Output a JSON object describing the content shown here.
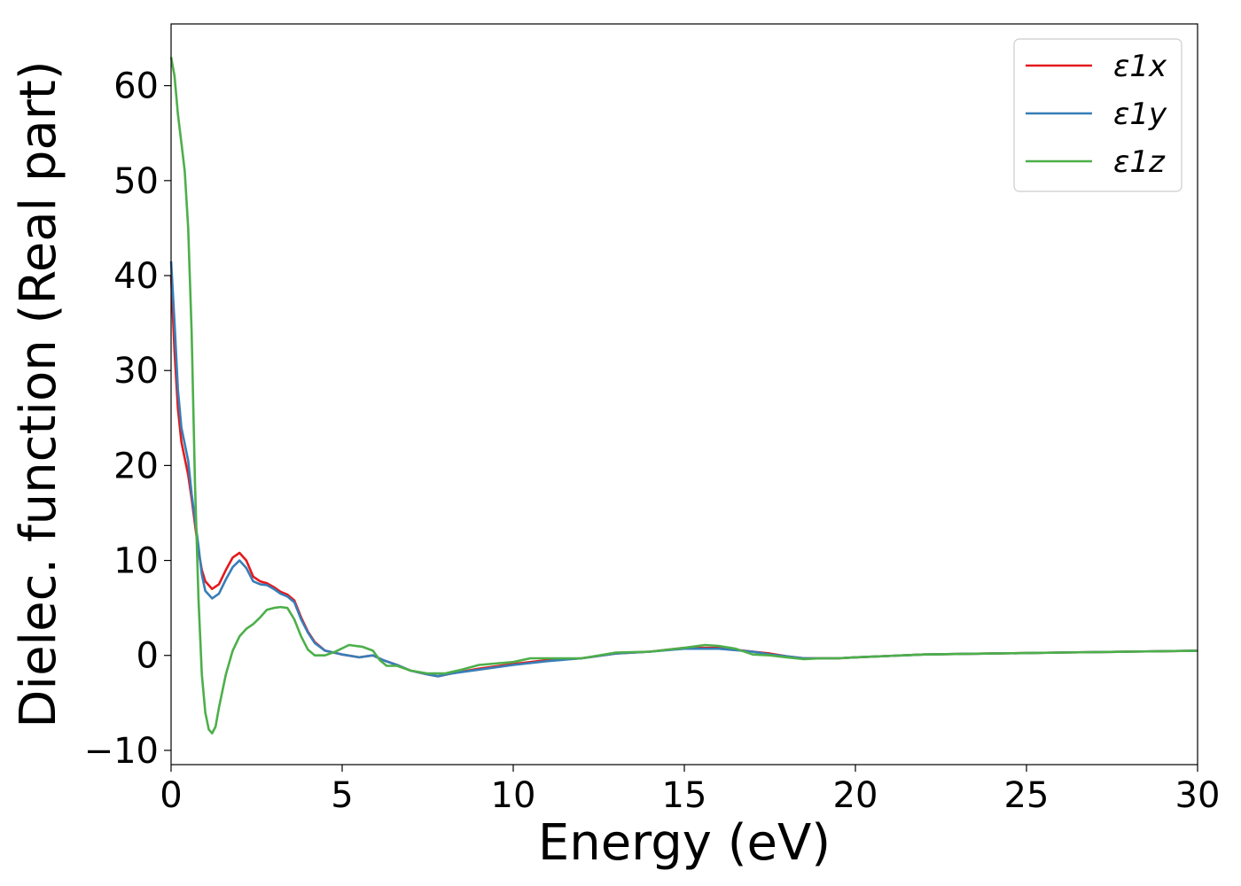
{
  "chart_data": {
    "type": "line",
    "xlabel": "Energy (eV)",
    "ylabel": "Dielec. function (Real part)",
    "xlim": [
      0,
      30
    ],
    "ylim": [
      -11.5,
      66.5
    ],
    "xticks": [
      0,
      5,
      10,
      15,
      20,
      25,
      30
    ],
    "xtick_labels": [
      "0",
      "5",
      "10",
      "15",
      "20",
      "25",
      "30"
    ],
    "yticks": [
      -10,
      0,
      10,
      20,
      30,
      40,
      50,
      60
    ],
    "ytick_labels": [
      "−10",
      "0",
      "10",
      "20",
      "30",
      "40",
      "50",
      "60"
    ],
    "grid": false,
    "legend_position": "top-right",
    "series": [
      {
        "name": "ε1x",
        "color": "#e41a1c",
        "points": [
          [
            0,
            40
          ],
          [
            0.1,
            32
          ],
          [
            0.2,
            26
          ],
          [
            0.3,
            22.5
          ],
          [
            0.5,
            19
          ],
          [
            0.6,
            16.5
          ],
          [
            0.8,
            11
          ],
          [
            0.9,
            9
          ],
          [
            1.0,
            7.8
          ],
          [
            1.2,
            7
          ],
          [
            1.4,
            7.5
          ],
          [
            1.6,
            9
          ],
          [
            1.8,
            10.3
          ],
          [
            2.0,
            10.8
          ],
          [
            2.2,
            10
          ],
          [
            2.4,
            8.3
          ],
          [
            2.6,
            7.8
          ],
          [
            2.8,
            7.6
          ],
          [
            3.0,
            7.2
          ],
          [
            3.2,
            6.7
          ],
          [
            3.4,
            6.4
          ],
          [
            3.6,
            5.8
          ],
          [
            3.8,
            4
          ],
          [
            4.0,
            2.5
          ],
          [
            4.2,
            1.4
          ],
          [
            4.5,
            0.5
          ],
          [
            5.0,
            0.1
          ],
          [
            5.5,
            -0.2
          ],
          [
            5.9,
            0
          ],
          [
            6.2,
            -0.5
          ],
          [
            6.6,
            -1
          ],
          [
            7.0,
            -1.6
          ],
          [
            7.5,
            -2
          ],
          [
            7.8,
            -2.2
          ],
          [
            8.2,
            -1.9
          ],
          [
            9.0,
            -1.4
          ],
          [
            10.0,
            -0.9
          ],
          [
            11.0,
            -0.5
          ],
          [
            12.0,
            -0.3
          ],
          [
            13.0,
            0.2
          ],
          [
            14.0,
            0.4
          ],
          [
            15.0,
            0.8
          ],
          [
            16.0,
            0.8
          ],
          [
            17.0,
            0.4
          ],
          [
            17.5,
            0.2
          ],
          [
            18.0,
            -0.1
          ],
          [
            18.5,
            -0.3
          ],
          [
            19.5,
            -0.3
          ],
          [
            20.0,
            -0.2
          ],
          [
            22.0,
            0.1
          ],
          [
            24.0,
            0.2
          ],
          [
            26.0,
            0.3
          ],
          [
            28.0,
            0.4
          ],
          [
            30.0,
            0.5
          ]
        ]
      },
      {
        "name": "ε1y",
        "color": "#377eb8",
        "points": [
          [
            0,
            41.5
          ],
          [
            0.1,
            35
          ],
          [
            0.2,
            28
          ],
          [
            0.3,
            24
          ],
          [
            0.5,
            20.5
          ],
          [
            0.6,
            17
          ],
          [
            0.8,
            11.5
          ],
          [
            0.9,
            8.5
          ],
          [
            1.0,
            6.8
          ],
          [
            1.2,
            6
          ],
          [
            1.4,
            6.5
          ],
          [
            1.6,
            8
          ],
          [
            1.8,
            9.3
          ],
          [
            2.0,
            10
          ],
          [
            2.2,
            9.2
          ],
          [
            2.4,
            7.8
          ],
          [
            2.6,
            7.5
          ],
          [
            2.8,
            7.4
          ],
          [
            3.0,
            7
          ],
          [
            3.2,
            6.5
          ],
          [
            3.4,
            6.2
          ],
          [
            3.6,
            5.6
          ],
          [
            3.8,
            3.8
          ],
          [
            4.0,
            2.4
          ],
          [
            4.2,
            1.3
          ],
          [
            4.5,
            0.5
          ],
          [
            5.0,
            0.1
          ],
          [
            5.5,
            -0.2
          ],
          [
            5.9,
            0
          ],
          [
            6.2,
            -0.5
          ],
          [
            6.6,
            -1
          ],
          [
            7.0,
            -1.6
          ],
          [
            7.5,
            -2
          ],
          [
            7.8,
            -2.2
          ],
          [
            8.2,
            -1.9
          ],
          [
            9.0,
            -1.5
          ],
          [
            10.0,
            -1
          ],
          [
            11.0,
            -0.6
          ],
          [
            12.0,
            -0.3
          ],
          [
            13.0,
            0.2
          ],
          [
            14.0,
            0.4
          ],
          [
            15.0,
            0.7
          ],
          [
            16.0,
            0.7
          ],
          [
            17.0,
            0.4
          ],
          [
            17.5,
            0.1
          ],
          [
            18.0,
            -0.1
          ],
          [
            18.5,
            -0.3
          ],
          [
            19.5,
            -0.3
          ],
          [
            20.0,
            -0.2
          ],
          [
            22.0,
            0.1
          ],
          [
            24.0,
            0.2
          ],
          [
            26.0,
            0.3
          ],
          [
            28.0,
            0.4
          ],
          [
            30.0,
            0.5
          ]
        ]
      },
      {
        "name": "ε1z",
        "color": "#4daf4a",
        "points": [
          [
            0,
            63
          ],
          [
            0.1,
            61
          ],
          [
            0.2,
            57
          ],
          [
            0.3,
            54
          ],
          [
            0.4,
            51
          ],
          [
            0.5,
            45
          ],
          [
            0.6,
            34
          ],
          [
            0.7,
            18
          ],
          [
            0.8,
            6
          ],
          [
            0.9,
            -2
          ],
          [
            1.0,
            -6
          ],
          [
            1.1,
            -7.8
          ],
          [
            1.2,
            -8.2
          ],
          [
            1.3,
            -7.5
          ],
          [
            1.4,
            -5.5
          ],
          [
            1.6,
            -2
          ],
          [
            1.8,
            0.5
          ],
          [
            2.0,
            2
          ],
          [
            2.2,
            2.8
          ],
          [
            2.4,
            3.3
          ],
          [
            2.6,
            4
          ],
          [
            2.8,
            4.8
          ],
          [
            3.0,
            5
          ],
          [
            3.2,
            5.1
          ],
          [
            3.4,
            5
          ],
          [
            3.6,
            3.8
          ],
          [
            3.8,
            2
          ],
          [
            4.0,
            0.6
          ],
          [
            4.2,
            0
          ],
          [
            4.5,
            0
          ],
          [
            4.8,
            0.4
          ],
          [
            5.2,
            1.1
          ],
          [
            5.6,
            0.9
          ],
          [
            5.9,
            0.5
          ],
          [
            6.1,
            -0.5
          ],
          [
            6.3,
            -1.1
          ],
          [
            6.6,
            -1.1
          ],
          [
            7.0,
            -1.6
          ],
          [
            7.5,
            -1.9
          ],
          [
            8.0,
            -1.9
          ],
          [
            8.5,
            -1.5
          ],
          [
            9.0,
            -1
          ],
          [
            10.0,
            -0.7
          ],
          [
            10.5,
            -0.3
          ],
          [
            11.0,
            -0.3
          ],
          [
            12.0,
            -0.3
          ],
          [
            13.0,
            0.3
          ],
          [
            14.0,
            0.4
          ],
          [
            15.0,
            0.8
          ],
          [
            15.6,
            1.1
          ],
          [
            16.0,
            1
          ],
          [
            16.5,
            0.7
          ],
          [
            17.0,
            0.1
          ],
          [
            17.5,
            0
          ],
          [
            18.0,
            -0.2
          ],
          [
            18.5,
            -0.4
          ],
          [
            19.0,
            -0.3
          ],
          [
            19.5,
            -0.3
          ],
          [
            20.0,
            -0.2
          ],
          [
            22.0,
            0.1
          ],
          [
            24.0,
            0.2
          ],
          [
            26.0,
            0.3
          ],
          [
            28.0,
            0.4
          ],
          [
            30.0,
            0.5
          ]
        ]
      }
    ]
  }
}
